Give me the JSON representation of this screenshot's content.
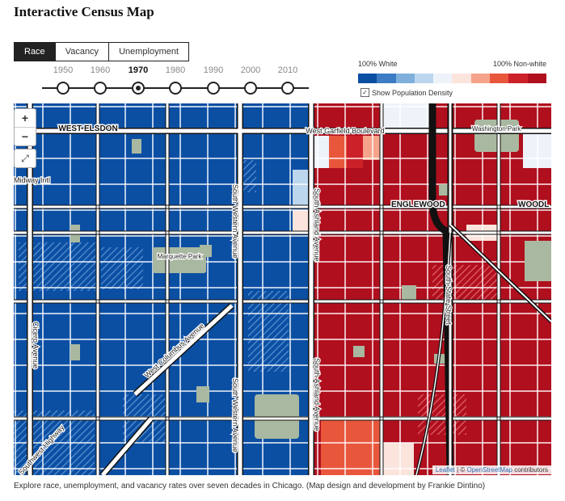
{
  "title": "Interactive Census Map",
  "tabs": [
    "Race",
    "Vacancy",
    "Unemployment"
  ],
  "active_tab": "Race",
  "years": [
    "1950",
    "1960",
    "1970",
    "1980",
    "1990",
    "2000",
    "2010"
  ],
  "active_year": "1970",
  "legend": {
    "left_label": "100% White",
    "right_label": "100% Non-white",
    "colors": [
      "#0b4fa3",
      "#3c7cc4",
      "#7fb0dc",
      "#bcd6ee",
      "#eef3fa",
      "#fbe4dc",
      "#f5a38a",
      "#e8573c",
      "#cd2129",
      "#b00f1e"
    ]
  },
  "density_toggle": {
    "label": "Show Population Density",
    "checked": true
  },
  "map": {
    "places": [
      "WEST ELSDON",
      "ENGLEWOOD",
      "WOODL",
      "Marquette Park",
      "Washington Park"
    ],
    "streets": [
      "West Garfield Boulevard",
      "South Western Avenue",
      "South Ashland Avenue",
      "South State Street",
      "West Columbus Avenue",
      "Cicero Avenue",
      "Southwest Highway",
      "Midway Intl"
    ],
    "zoom_in": "+",
    "zoom_out": "−"
  },
  "attribution": {
    "leaflet": "Leaflet",
    "separator": " | © ",
    "osm": "OpenStreetMap",
    "suffix": " contributors"
  },
  "caption": "Explore race, unemployment, and vacancy rates over seven decades in Chicago. (Map design and development by Frankie Dintino)"
}
